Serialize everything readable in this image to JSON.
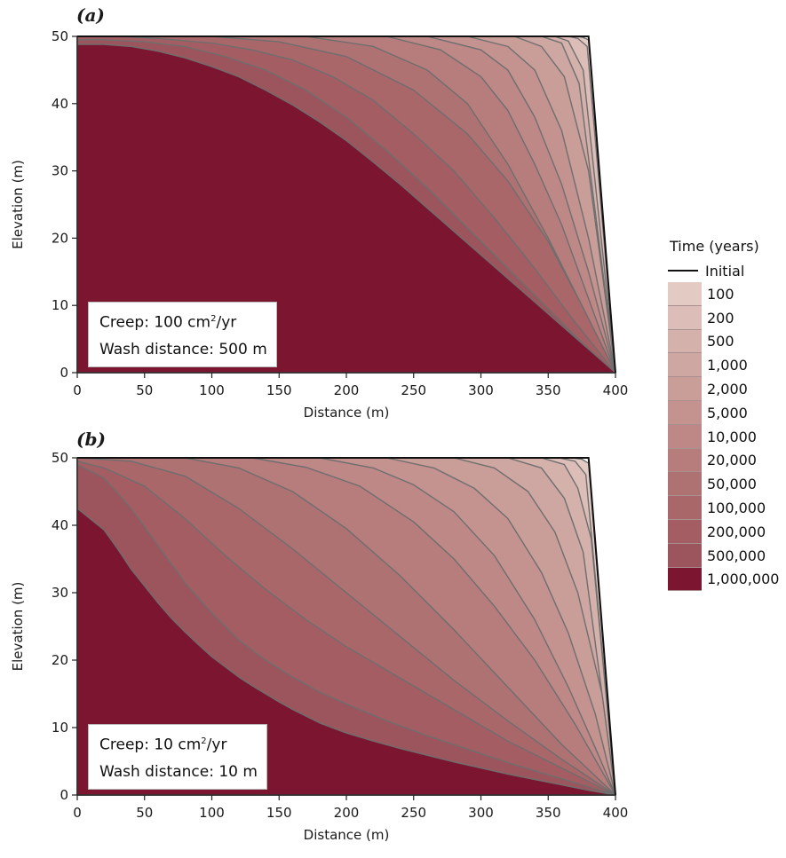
{
  "chart_data": [
    {
      "type": "area",
      "panel_label": "(a)",
      "xlabel": "Distance (m)",
      "ylabel": "Elevation (m)",
      "xlim": [
        0,
        400
      ],
      "ylim": [
        0,
        50
      ],
      "x_ticks": [
        "0",
        "50",
        "100",
        "150",
        "200",
        "250",
        "300",
        "350",
        "400"
      ],
      "y_ticks": [
        "0",
        "10",
        "20",
        "30",
        "40",
        "50"
      ],
      "grid": false,
      "annotation": {
        "creep_label": "Creep: 100 cm",
        "creep_sup": "2",
        "creep_unit": "/yr",
        "wash_label": "Wash distance: 500 m"
      },
      "initial_profile": {
        "x": [
          0,
          380,
          400
        ],
        "y": [
          50,
          50,
          0
        ]
      },
      "series": [
        {
          "time": "100",
          "x": [
            0,
            370,
            375,
            380,
            400
          ],
          "y": [
            50,
            50,
            49.9,
            49.5,
            0
          ]
        },
        {
          "time": "200",
          "x": [
            0,
            365,
            372,
            379,
            400
          ],
          "y": [
            50,
            50,
            49.7,
            48.5,
            0
          ]
        },
        {
          "time": "500",
          "x": [
            0,
            355,
            365,
            376,
            400
          ],
          "y": [
            50,
            50,
            49.3,
            45,
            0
          ]
        },
        {
          "time": "1,000",
          "x": [
            0,
            345,
            360,
            373,
            400
          ],
          "y": [
            50,
            50,
            49,
            43,
            0
          ]
        },
        {
          "time": "2,000",
          "x": [
            0,
            325,
            345,
            362,
            380,
            400
          ],
          "y": [
            50,
            50,
            48.5,
            44,
            30,
            0
          ]
        },
        {
          "time": "5,000",
          "x": [
            0,
            290,
            320,
            340,
            360,
            380,
            400
          ],
          "y": [
            50,
            50,
            48.5,
            45,
            36,
            20,
            0
          ]
        },
        {
          "time": "10,000",
          "x": [
            0,
            260,
            300,
            320,
            340,
            360,
            380,
            400
          ],
          "y": [
            50,
            50,
            48,
            45,
            38,
            28,
            15,
            0
          ]
        },
        {
          "time": "20,000",
          "x": [
            0,
            230,
            270,
            300,
            320,
            340,
            360,
            380,
            400
          ],
          "y": [
            50,
            50,
            48,
            44,
            39,
            31,
            22,
            11,
            0
          ]
        },
        {
          "time": "50,000",
          "x": [
            0,
            170,
            220,
            260,
            290,
            320,
            350,
            375,
            400
          ],
          "y": [
            50,
            50,
            48.5,
            45,
            40,
            31,
            20,
            10,
            0
          ]
        },
        {
          "time": "100,000",
          "x": [
            0,
            100,
            150,
            200,
            250,
            290,
            320,
            350,
            375,
            400
          ],
          "y": [
            50,
            50,
            49.2,
            47,
            42,
            35.5,
            28.5,
            19.5,
            10,
            0
          ]
        },
        {
          "time": "200,000",
          "x": [
            0,
            30,
            60,
            100,
            130,
            160,
            190,
            220,
            250,
            280,
            310,
            340,
            370,
            400
          ],
          "y": [
            50,
            50,
            49.7,
            49,
            48,
            46.5,
            44,
            40.5,
            35.5,
            30,
            23,
            15.5,
            7.5,
            0
          ]
        },
        {
          "time": "500,000",
          "x": [
            0,
            20,
            50,
            80,
            110,
            140,
            170,
            200,
            230,
            260,
            290,
            320,
            350,
            375,
            400
          ],
          "y": [
            49.5,
            49.5,
            49.2,
            48.5,
            47,
            45,
            42,
            38,
            33,
            27.5,
            21.5,
            15.5,
            9.5,
            4.5,
            0
          ]
        },
        {
          "time": "1,000,000",
          "x": [
            0,
            20,
            40,
            60,
            80,
            100,
            120,
            140,
            160,
            180,
            200,
            220,
            240,
            260,
            280,
            300,
            320,
            340,
            360,
            380,
            400
          ],
          "y": [
            48.8,
            48.8,
            48.5,
            47.8,
            46.8,
            45.5,
            44,
            42,
            39.8,
            37.3,
            34.5,
            31.3,
            28,
            24.5,
            21,
            17.5,
            14,
            10.5,
            7,
            3.5,
            0
          ]
        }
      ]
    },
    {
      "type": "area",
      "panel_label": "(b)",
      "xlabel": "Distance (m)",
      "ylabel": "Elevation (m)",
      "xlim": [
        0,
        400
      ],
      "ylim": [
        0,
        50
      ],
      "x_ticks": [
        "0",
        "50",
        "100",
        "150",
        "200",
        "250",
        "300",
        "350",
        "400"
      ],
      "y_ticks": [
        "0",
        "10",
        "20",
        "30",
        "40",
        "50"
      ],
      "grid": false,
      "annotation": {
        "creep_label": "Creep: 10 cm",
        "creep_sup": "2",
        "creep_unit": "/yr",
        "wash_label": "Wash distance: 10 m"
      },
      "initial_profile": {
        "x": [
          0,
          380,
          400
        ],
        "y": [
          50,
          50,
          0
        ]
      },
      "series": [
        {
          "time": "100",
          "x": [
            0,
            368,
            375,
            380,
            400
          ],
          "y": [
            50,
            50,
            49.8,
            49.2,
            0
          ]
        },
        {
          "time": "200",
          "x": [
            0,
            358,
            370,
            378,
            400
          ],
          "y": [
            50,
            50,
            49.5,
            47.5,
            0
          ]
        },
        {
          "time": "500",
          "x": [
            0,
            345,
            362,
            372,
            382,
            400
          ],
          "y": [
            50,
            50,
            49,
            45.5,
            38,
            0
          ]
        },
        {
          "time": "1,000",
          "x": [
            0,
            320,
            345,
            362,
            376,
            400
          ],
          "y": [
            50,
            50,
            48.5,
            44,
            36,
            0
          ]
        },
        {
          "time": "2,000",
          "x": [
            0,
            280,
            310,
            335,
            355,
            372,
            390,
            400
          ],
          "y": [
            50,
            50,
            48.5,
            45,
            39,
            30,
            15,
            0
          ]
        },
        {
          "time": "5,000",
          "x": [
            0,
            230,
            265,
            295,
            320,
            345,
            365,
            385,
            400
          ],
          "y": [
            50,
            50,
            48.5,
            45.5,
            41,
            33,
            24,
            12,
            0
          ]
        },
        {
          "time": "10,000",
          "x": [
            0,
            180,
            220,
            250,
            280,
            310,
            340,
            365,
            385,
            400
          ],
          "y": [
            50,
            50,
            48.5,
            46,
            42,
            35.5,
            26,
            16,
            7,
            0
          ]
        },
        {
          "time": "20,000",
          "x": [
            0,
            130,
            170,
            210,
            250,
            280,
            310,
            340,
            370,
            400
          ],
          "y": [
            50,
            50,
            48.6,
            45.8,
            40.5,
            35,
            28,
            20,
            10.5,
            0
          ]
        },
        {
          "time": "50,000",
          "x": [
            0,
            80,
            120,
            160,
            200,
            240,
            280,
            320,
            360,
            400
          ],
          "y": [
            50,
            50,
            48.5,
            45,
            39.5,
            32.5,
            24.5,
            16,
            7.5,
            0
          ]
        },
        {
          "time": "100,000",
          "x": [
            0,
            40,
            80,
            120,
            160,
            200,
            240,
            280,
            320,
            360,
            400
          ],
          "y": [
            50,
            49.5,
            47.3,
            42.5,
            36.5,
            30,
            23.5,
            17,
            11,
            5.3,
            0
          ]
        },
        {
          "time": "200,000",
          "x": [
            0,
            20,
            50,
            80,
            110,
            140,
            170,
            200,
            230,
            260,
            290,
            320,
            350,
            375,
            400
          ],
          "y": [
            49.5,
            48.5,
            45.8,
            41,
            35.5,
            30.5,
            26,
            22,
            18.5,
            15,
            11.5,
            8,
            5,
            2.5,
            0
          ]
        },
        {
          "time": "500,000",
          "x": [
            0,
            20,
            40,
            60,
            80,
            100,
            120,
            140,
            160,
            180,
            200,
            230,
            260,
            290,
            320,
            350,
            375,
            400
          ],
          "y": [
            49,
            47,
            42.5,
            37,
            31.5,
            27,
            23,
            20,
            17.5,
            15.3,
            13.5,
            11,
            8.8,
            6.8,
            4.8,
            3,
            1.5,
            0
          ]
        },
        {
          "time": "1,000,000",
          "x": [
            0,
            20,
            30,
            40,
            50,
            60,
            70,
            80,
            90,
            100,
            110,
            120,
            130,
            140,
            150,
            160,
            170,
            180,
            200,
            220,
            240,
            260,
            280,
            300,
            320,
            340,
            360,
            380,
            400
          ],
          "y": [
            42.5,
            39.3,
            36.5,
            33.5,
            31,
            28.5,
            26.2,
            24.2,
            22.3,
            20.5,
            19,
            17.5,
            16.2,
            15,
            13.8,
            12.7,
            11.7,
            10.7,
            9.2,
            8,
            6.9,
            5.9,
            4.9,
            4,
            3.1,
            2.3,
            1.5,
            0.7,
            0
          ]
        }
      ]
    }
  ],
  "legend": {
    "title": "Time (years)",
    "initial_label": "Initial",
    "items": [
      {
        "label": "100",
        "color": "#e3cbc4"
      },
      {
        "label": "200",
        "color": "#dcbdb7"
      },
      {
        "label": "500",
        "color": "#d5b1ab"
      },
      {
        "label": "1,000",
        "color": "#cfa7a2"
      },
      {
        "label": "2,000",
        "color": "#c99d98"
      },
      {
        "label": "5,000",
        "color": "#c4938f"
      },
      {
        "label": "10,000",
        "color": "#bd8886"
      },
      {
        "label": "20,000",
        "color": "#b67d7c"
      },
      {
        "label": "50,000",
        "color": "#af7273"
      },
      {
        "label": "100,000",
        "color": "#a9676a"
      },
      {
        "label": "200,000",
        "color": "#a45e63"
      },
      {
        "label": "500,000",
        "color": "#9c555c"
      },
      {
        "label": "1,000,000",
        "color": "#7b1530"
      }
    ],
    "line_color": "#6e6e6e"
  }
}
